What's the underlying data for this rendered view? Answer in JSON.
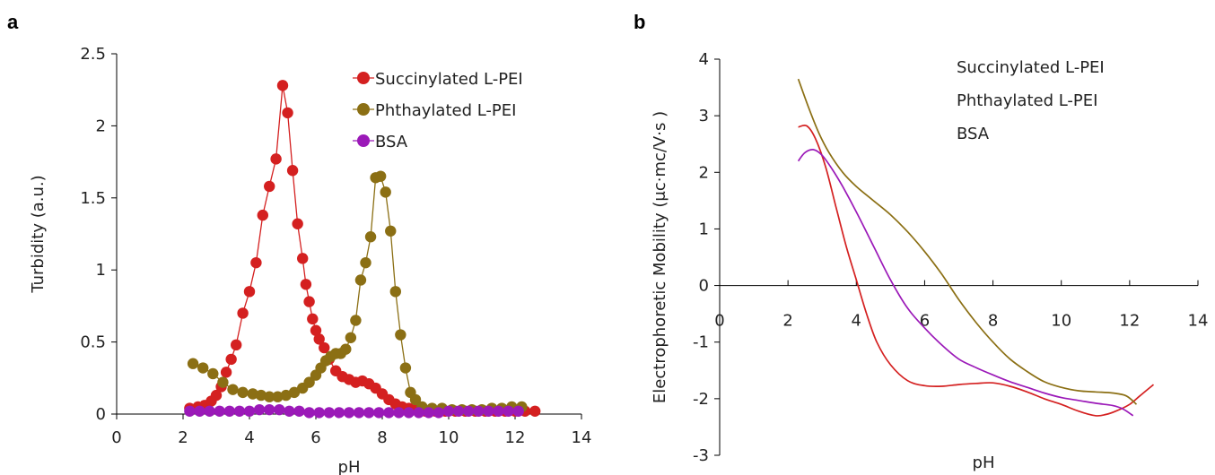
{
  "figure": {
    "panel_a_label": "a",
    "panel_b_label": "b"
  },
  "chart_data": [
    {
      "type": "scatter",
      "panel": "a",
      "title": "",
      "xlabel": "pH",
      "ylabel": "Turbidity (a.u.)",
      "xlim": [
        0,
        14
      ],
      "ylim": [
        0,
        2.5
      ],
      "xticks": [
        0,
        2,
        4,
        6,
        8,
        10,
        12,
        14
      ],
      "yticks": [
        0,
        0.5,
        1,
        1.5,
        2,
        2.5
      ],
      "xtick_labels": [
        "0",
        "2",
        "4",
        "6",
        "8",
        "10",
        "12",
        "14"
      ],
      "ytick_labels": [
        "0",
        "0.5",
        "1",
        "1.5",
        "2",
        "2.5"
      ],
      "grid": false,
      "legend": "top-right",
      "series": [
        {
          "name": "Succinylated L-PEI",
          "color": "#d42020",
          "marker": "circle",
          "line": true,
          "x": [
            2.2,
            2.45,
            2.65,
            2.85,
            3.0,
            3.15,
            3.3,
            3.45,
            3.6,
            3.8,
            4.0,
            4.2,
            4.4,
            4.6,
            4.8,
            5.0,
            5.15,
            5.3,
            5.45,
            5.6,
            5.7,
            5.8,
            5.9,
            6.0,
            6.1,
            6.25,
            6.4,
            6.6,
            6.8,
            7.0,
            7.2,
            7.4,
            7.6,
            7.8,
            8.0,
            8.2,
            8.4,
            8.6,
            8.8,
            9.0,
            9.3,
            9.6,
            9.9,
            10.2,
            10.5,
            10.8,
            11.1,
            11.4,
            11.7,
            12.0,
            12.3,
            12.6
          ],
          "y": [
            0.04,
            0.05,
            0.06,
            0.09,
            0.13,
            0.19,
            0.29,
            0.38,
            0.48,
            0.7,
            0.85,
            1.05,
            1.38,
            1.58,
            1.77,
            2.28,
            2.09,
            1.69,
            1.32,
            1.08,
            0.9,
            0.78,
            0.66,
            0.58,
            0.52,
            0.46,
            0.38,
            0.3,
            0.26,
            0.24,
            0.22,
            0.23,
            0.21,
            0.18,
            0.14,
            0.1,
            0.07,
            0.05,
            0.04,
            0.03,
            0.02,
            0.02,
            0.02,
            0.02,
            0.02,
            0.02,
            0.02,
            0.02,
            0.02,
            0.02,
            0.02,
            0.02
          ]
        },
        {
          "name": "Phthaylated L-PEI",
          "color": "#8b6f14",
          "marker": "circle",
          "line": true,
          "x": [
            2.3,
            2.6,
            2.9,
            3.2,
            3.5,
            3.8,
            4.1,
            4.35,
            4.6,
            4.85,
            5.1,
            5.35,
            5.6,
            5.8,
            6.0,
            6.15,
            6.3,
            6.45,
            6.6,
            6.75,
            6.9,
            7.05,
            7.2,
            7.35,
            7.5,
            7.65,
            7.8,
            7.95,
            8.1,
            8.25,
            8.4,
            8.55,
            8.7,
            8.85,
            9.0,
            9.2,
            9.5,
            9.8,
            10.1,
            10.4,
            10.7,
            11.0,
            11.3,
            11.6,
            11.9,
            12.2
          ],
          "y": [
            0.35,
            0.32,
            0.28,
            0.22,
            0.17,
            0.15,
            0.14,
            0.13,
            0.12,
            0.12,
            0.13,
            0.15,
            0.18,
            0.22,
            0.27,
            0.32,
            0.37,
            0.4,
            0.42,
            0.42,
            0.45,
            0.53,
            0.65,
            0.93,
            1.05,
            1.23,
            1.64,
            1.65,
            1.54,
            1.27,
            0.85,
            0.55,
            0.32,
            0.15,
            0.1,
            0.05,
            0.04,
            0.04,
            0.03,
            0.03,
            0.03,
            0.03,
            0.04,
            0.04,
            0.05,
            0.05
          ]
        },
        {
          "name": "BSA",
          "color": "#9b19b8",
          "marker": "circle",
          "line": true,
          "x": [
            2.2,
            2.5,
            2.8,
            3.1,
            3.4,
            3.7,
            4.0,
            4.3,
            4.6,
            4.9,
            5.2,
            5.5,
            5.8,
            6.1,
            6.4,
            6.7,
            7.0,
            7.3,
            7.6,
            7.9,
            8.2,
            8.5,
            8.8,
            9.1,
            9.4,
            9.7,
            10.0,
            10.3,
            10.6,
            10.9,
            11.2,
            11.5,
            11.8,
            12.1
          ],
          "y": [
            0.02,
            0.02,
            0.02,
            0.02,
            0.02,
            0.02,
            0.02,
            0.03,
            0.03,
            0.03,
            0.02,
            0.02,
            0.01,
            0.01,
            0.01,
            0.01,
            0.01,
            0.01,
            0.01,
            0.01,
            0.01,
            0.01,
            0.01,
            0.01,
            0.01,
            0.01,
            0.02,
            0.02,
            0.02,
            0.02,
            0.02,
            0.02,
            0.02,
            0.02
          ]
        }
      ]
    },
    {
      "type": "line",
      "panel": "b",
      "title": "",
      "xlabel": "pH",
      "ylabel": "Electrophoretic Mobility (μc·mc/V·s )",
      "xlim": [
        0,
        14
      ],
      "ylim": [
        -3,
        4
      ],
      "xticks": [
        0,
        2,
        4,
        6,
        8,
        10,
        12,
        14
      ],
      "yticks": [
        -3,
        -2,
        -1,
        0,
        1,
        2,
        3,
        4
      ],
      "xtick_labels": [
        "0",
        "2",
        "4",
        "6",
        "8",
        "10",
        "12",
        "14"
      ],
      "ytick_labels": [
        "-3",
        "-2",
        "-1",
        "0",
        "1",
        "2",
        "3",
        "4"
      ],
      "grid": false,
      "legend": "top-right",
      "series": [
        {
          "name": "Succinylated L-PEI",
          "color": "#d42020",
          "x": [
            2.3,
            2.55,
            2.8,
            3.1,
            3.4,
            3.7,
            4.0,
            4.3,
            4.6,
            5.0,
            5.5,
            6.0,
            6.5,
            7.0,
            7.5,
            8.0,
            8.5,
            9.0,
            9.5,
            10.0,
            10.5,
            11.0,
            11.3,
            11.6,
            12.0,
            12.3,
            12.7
          ],
          "y": [
            2.8,
            2.82,
            2.6,
            2.1,
            1.4,
            0.7,
            0.1,
            -0.5,
            -1.0,
            -1.4,
            -1.68,
            -1.77,
            -1.78,
            -1.75,
            -1.73,
            -1.72,
            -1.78,
            -1.88,
            -2.0,
            -2.1,
            -2.22,
            -2.3,
            -2.28,
            -2.22,
            -2.1,
            -1.95,
            -1.75
          ]
        },
        {
          "name": "Phthaylated L-PEI",
          "color": "#8b6f14",
          "x": [
            2.3,
            2.6,
            2.9,
            3.2,
            3.6,
            4.0,
            4.5,
            5.0,
            5.5,
            6.0,
            6.5,
            7.0,
            7.5,
            8.0,
            8.5,
            9.0,
            9.5,
            10.0,
            10.5,
            11.0,
            11.5,
            11.9,
            12.2
          ],
          "y": [
            3.65,
            3.15,
            2.7,
            2.35,
            2.0,
            1.75,
            1.5,
            1.25,
            0.95,
            0.6,
            0.2,
            -0.25,
            -0.65,
            -1.0,
            -1.3,
            -1.52,
            -1.7,
            -1.8,
            -1.86,
            -1.88,
            -1.9,
            -1.95,
            -2.1
          ]
        },
        {
          "name": "BSA",
          "color": "#9b19b8",
          "x": [
            2.3,
            2.5,
            2.75,
            3.0,
            3.3,
            3.6,
            4.0,
            4.5,
            5.0,
            5.5,
            6.0,
            6.5,
            7.0,
            7.5,
            8.0,
            8.5,
            9.0,
            9.5,
            10.0,
            10.5,
            11.0,
            11.5,
            11.8,
            12.1
          ],
          "y": [
            2.2,
            2.35,
            2.4,
            2.3,
            2.05,
            1.75,
            1.3,
            0.7,
            0.1,
            -0.4,
            -0.75,
            -1.05,
            -1.3,
            -1.45,
            -1.58,
            -1.7,
            -1.8,
            -1.9,
            -1.98,
            -2.03,
            -2.08,
            -2.12,
            -2.18,
            -2.3
          ]
        }
      ]
    }
  ]
}
